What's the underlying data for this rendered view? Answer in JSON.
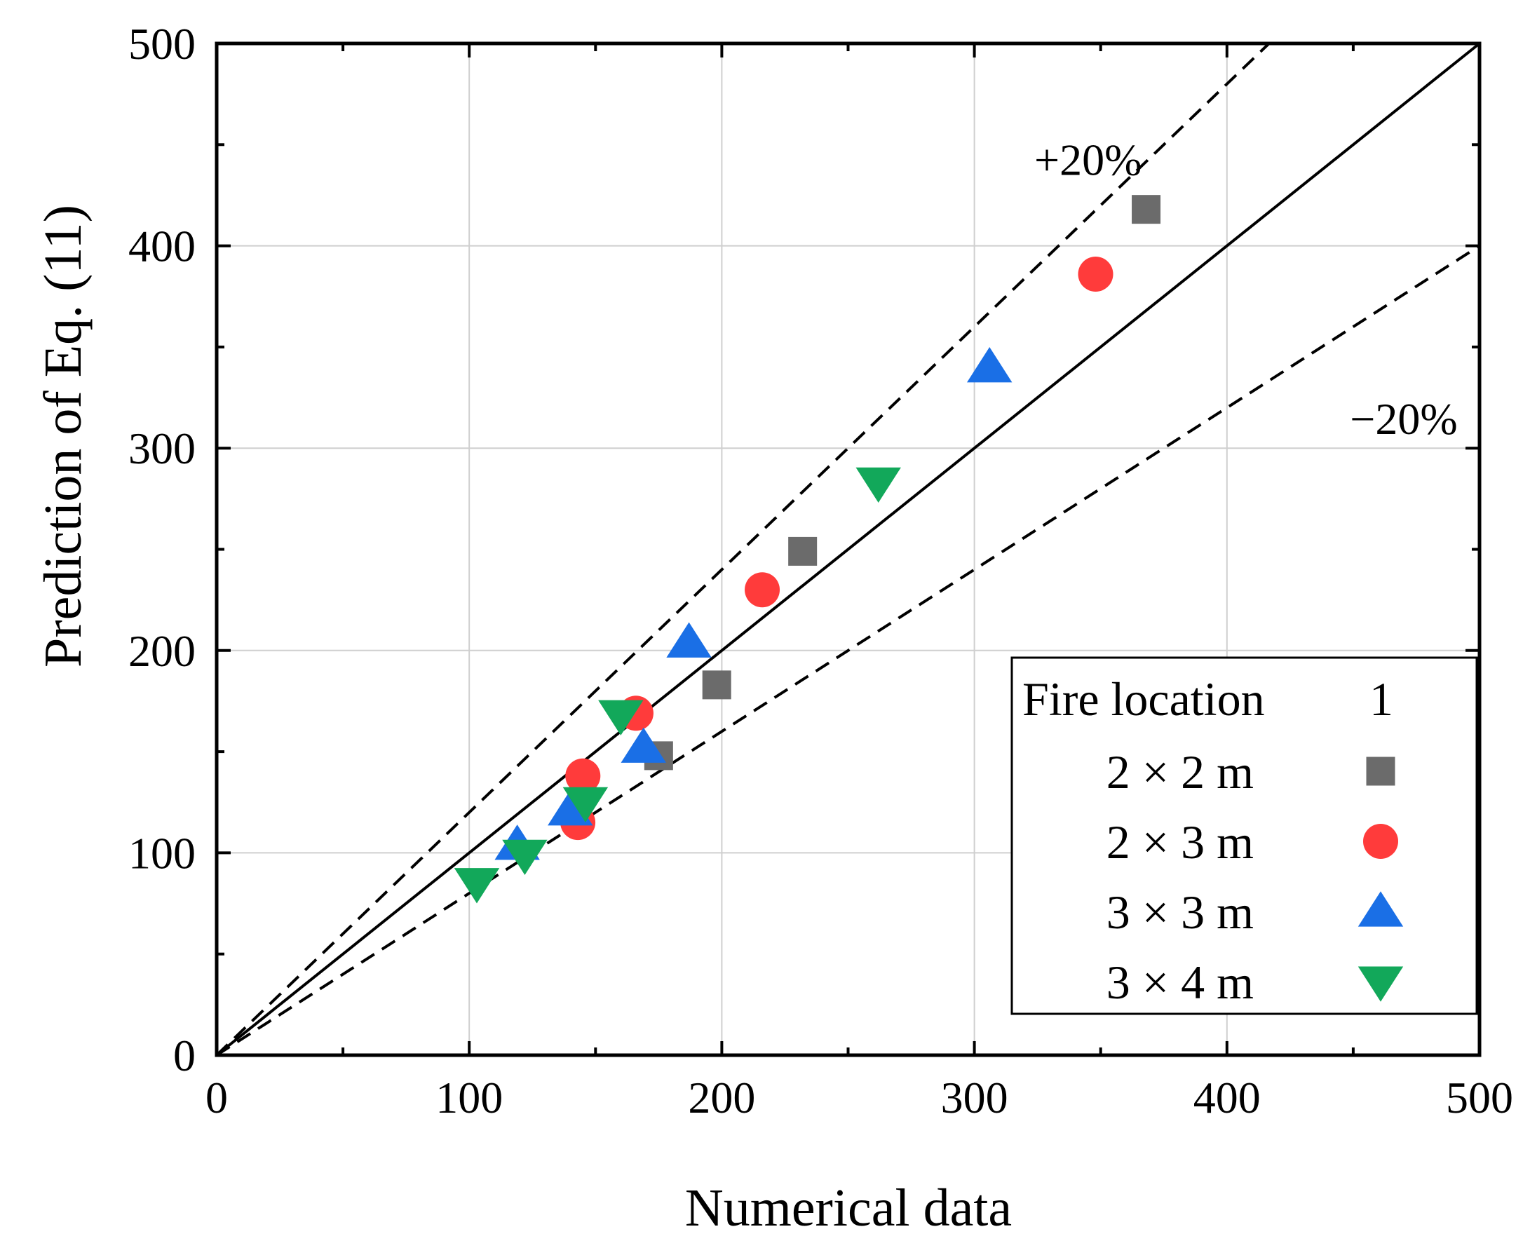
{
  "chart_data": {
    "type": "scatter",
    "xlabel": "Numerical data",
    "ylabel": "Prediction of Eq. (11)",
    "xlim": [
      0,
      500
    ],
    "ylim": [
      0,
      500
    ],
    "x_ticks": [
      0,
      100,
      200,
      300,
      400,
      500
    ],
    "y_ticks": [
      0,
      100,
      200,
      300,
      400,
      500
    ],
    "minor_step": 50,
    "grid": true,
    "reference_lines": [
      {
        "name": "1:1",
        "slope": 1.0,
        "style": "solid"
      },
      {
        "name": "+20%",
        "slope": 1.2,
        "style": "dashed"
      },
      {
        "name": "-20%",
        "slope": 0.8,
        "style": "dashed"
      }
    ],
    "annotations": [
      {
        "text": "+20%",
        "x": 345,
        "y": 435
      },
      {
        "text": "−20%",
        "x": 470,
        "y": 307
      }
    ],
    "legend": {
      "title": "Fire location",
      "title_value": "1",
      "placement": "bottom-right"
    },
    "series": [
      {
        "name": "2 × 2 m",
        "marker": "square",
        "color": "#6b6b6b",
        "points": [
          [
            175,
            148
          ],
          [
            198,
            183
          ],
          [
            232,
            249
          ],
          [
            368,
            418
          ]
        ]
      },
      {
        "name": "2 × 3 m",
        "marker": "circle",
        "color": "#ff3b3b",
        "points": [
          [
            143,
            115
          ],
          [
            145,
            138
          ],
          [
            166,
            169
          ],
          [
            216,
            230
          ],
          [
            348,
            386
          ]
        ]
      },
      {
        "name": "3 × 3 m",
        "marker": "triangle-up",
        "color": "#1a6fe6",
        "points": [
          [
            119,
            104
          ],
          [
            140,
            121
          ],
          [
            169,
            152
          ],
          [
            187,
            204
          ],
          [
            306,
            340
          ]
        ]
      },
      {
        "name": "3 × 4 m",
        "marker": "triangle-down",
        "color": "#12a85a",
        "points": [
          [
            103,
            85
          ],
          [
            122,
            99
          ],
          [
            146,
            125
          ],
          [
            160,
            168
          ],
          [
            262,
            283
          ]
        ]
      }
    ]
  }
}
